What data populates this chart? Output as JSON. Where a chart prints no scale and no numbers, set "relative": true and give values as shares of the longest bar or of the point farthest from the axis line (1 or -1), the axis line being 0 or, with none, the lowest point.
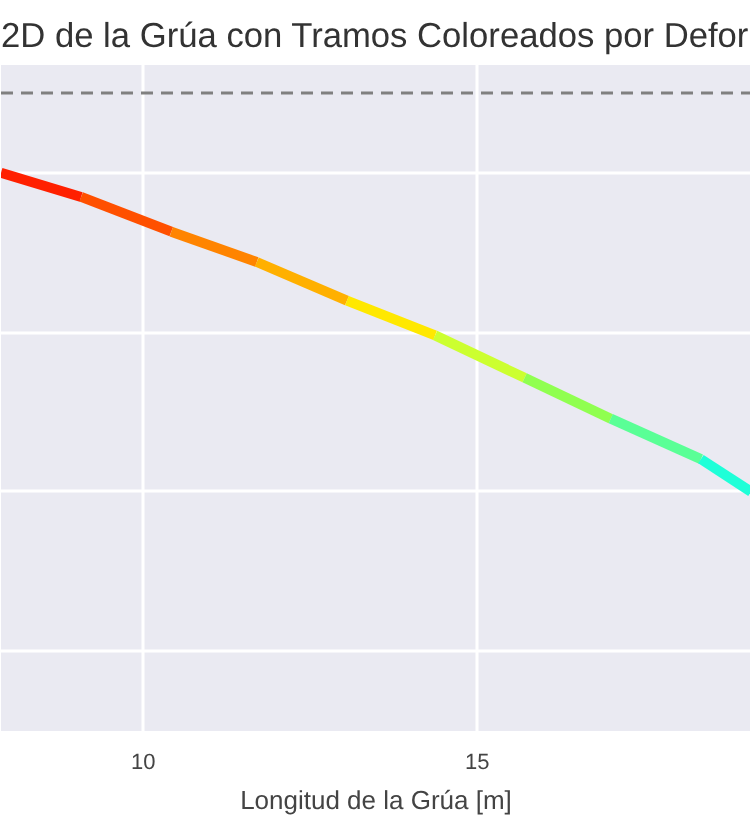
{
  "chart_data": {
    "type": "line",
    "title": "2D de la Grúa con Tramos Coloreados por Defor",
    "xlabel": "Longitud de la Grúa [m]",
    "relative": true,
    "xlim": [
      7.87,
      19.1
    ],
    "xticks": [
      10,
      15
    ],
    "grid": true,
    "series": [
      {
        "color": "#ff2000",
        "x": [
          7.87,
          9.07
        ],
        "values": [
          1.0,
          0.924
        ]
      },
      {
        "color": "#ff5000",
        "x": [
          9.07,
          10.42
        ],
        "values": [
          0.924,
          0.815
        ]
      },
      {
        "color": "#ff8400",
        "x": [
          10.42,
          11.7
        ],
        "values": [
          0.815,
          0.72
        ]
      },
      {
        "color": "#ffb000",
        "x": [
          11.7,
          13.05
        ],
        "values": [
          0.72,
          0.599
        ]
      },
      {
        "color": "#ffe800",
        "x": [
          13.05,
          14.37
        ],
        "values": [
          0.599,
          0.49
        ]
      },
      {
        "color": "#ccff30",
        "x": [
          14.37,
          15.71
        ],
        "values": [
          0.49,
          0.357
        ]
      },
      {
        "color": "#90ff50",
        "x": [
          15.71,
          17.0
        ],
        "values": [
          0.357,
          0.229
        ]
      },
      {
        "color": "#5aff96",
        "x": [
          17.0,
          18.35
        ],
        "values": [
          0.229,
          0.102
        ]
      },
      {
        "color": "#1effd8",
        "x": [
          18.35,
          19.1
        ],
        "values": [
          0.102,
          0.0
        ]
      }
    ],
    "ref_lines": [
      {
        "axis": "y",
        "value": 1.25,
        "color": "#808080",
        "line_style": "dashed"
      }
    ]
  }
}
